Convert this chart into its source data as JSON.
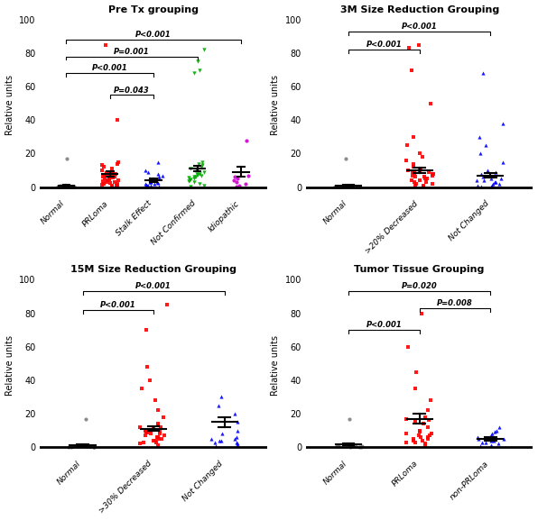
{
  "panels": [
    {
      "title": "Pre Tx grouping",
      "groups_all": [
        "Normal",
        "PRLoma",
        "Stalk Effect",
        "Not Confirmed",
        "Idiopathic"
      ],
      "colors": [
        "#808080",
        "#FF0000",
        "#0000FF",
        "#00AA00",
        "#CC00CC"
      ],
      "markers": [
        "o",
        "s",
        "^",
        "v",
        "o"
      ],
      "means": [
        1.0,
        8.0,
        4.0,
        11.0,
        9.0
      ],
      "sems": [
        0.5,
        1.5,
        1.0,
        1.5,
        3.0
      ],
      "data": [
        [
          0.2,
          0.3,
          0.5,
          0.4,
          0.6,
          0.7,
          0.5,
          0.4,
          0.3,
          0.5,
          0.6,
          0.4,
          0.5,
          0.3,
          0.4,
          0.5,
          0.6,
          17.0,
          0.3,
          0.4
        ],
        [
          1.0,
          2.0,
          3.0,
          4.0,
          5.0,
          6.0,
          7.0,
          8.0,
          9.0,
          10.0,
          11.0,
          12.0,
          13.0,
          14.0,
          15.0,
          8.0,
          7.5,
          6.5,
          5.5,
          4.5,
          3.5,
          2.5,
          1.5,
          0.5,
          85.0,
          9.0,
          8.5,
          7.0,
          6.0,
          5.0,
          4.0,
          3.0,
          2.0,
          1.0,
          0.5,
          40.0
        ],
        [
          0.5,
          1.0,
          2.0,
          3.0,
          4.0,
          5.0,
          6.0,
          4.0,
          3.0,
          2.0,
          1.0,
          0.5,
          0.3,
          7.0,
          8.0,
          9.0,
          10.0,
          5.0,
          3.0,
          2.5,
          15.0,
          1.5,
          0.8
        ],
        [
          0.5,
          1.0,
          2.0,
          3.0,
          4.0,
          5.0,
          6.0,
          7.0,
          8.0,
          9.0,
          10.0,
          11.0,
          12.0,
          13.0,
          14.0,
          15.0,
          8.0,
          7.5,
          6.5,
          5.5,
          4.5,
          3.5,
          70.0,
          68.0,
          75.0,
          82.0
        ],
        [
          0.5,
          1.0,
          2.0,
          3.0,
          4.0,
          5.0,
          6.0,
          7.0,
          28.0
        ]
      ],
      "significance": [
        {
          "from": 0,
          "to": 4,
          "y": 88,
          "text": "P<0.001"
        },
        {
          "from": 0,
          "to": 3,
          "y": 78,
          "text": "P=0.001"
        },
        {
          "from": 0,
          "to": 2,
          "y": 68,
          "text": "P<0.001"
        },
        {
          "from": 1,
          "to": 2,
          "y": 55,
          "text": "P=0.043"
        }
      ]
    },
    {
      "title": "3M Size Reduction Grouping",
      "groups_all": [
        "Normal",
        ">20% Decreased",
        "Not Changed"
      ],
      "colors": [
        "#808080",
        "#FF0000",
        "#0000FF"
      ],
      "markers": [
        "o",
        "s",
        "^"
      ],
      "means": [
        1.0,
        10.0,
        7.0
      ],
      "sems": [
        0.5,
        1.5,
        1.5
      ],
      "data": [
        [
          0.2,
          0.3,
          0.5,
          0.4,
          0.6,
          0.7,
          0.5,
          0.4,
          0.3,
          0.5,
          0.6,
          0.4,
          0.5,
          0.3,
          0.4,
          0.5,
          17.0,
          0.3,
          0.4
        ],
        [
          1.0,
          2.0,
          3.0,
          4.0,
          5.0,
          6.0,
          7.0,
          8.0,
          9.0,
          10.0,
          12.0,
          14.0,
          16.0,
          18.0,
          20.0,
          25.0,
          30.0,
          50.0,
          70.0,
          83.0,
          85.0,
          8.0,
          7.0,
          6.0,
          5.0,
          4.0,
          3.0,
          2.0,
          1.0,
          0.5,
          11.0,
          10.0,
          9.0,
          8.5
        ],
        [
          0.5,
          1.0,
          2.0,
          3.0,
          4.0,
          5.0,
          6.0,
          7.0,
          8.0,
          9.0,
          10.0,
          15.0,
          20.0,
          25.0,
          30.0,
          38.0,
          5.0,
          4.0,
          3.0,
          2.0,
          1.0,
          0.5,
          68.0
        ]
      ],
      "significance": [
        {
          "from": 0,
          "to": 2,
          "y": 93,
          "text": "P<0.001"
        },
        {
          "from": 0,
          "to": 1,
          "y": 82,
          "text": "P<0.001"
        }
      ]
    },
    {
      "title": "15M Size Reduction Grouping",
      "groups_all": [
        "Normal",
        ">30% Decreased",
        "Not Changed"
      ],
      "colors": [
        "#808080",
        "#FF0000",
        "#0000FF"
      ],
      "markers": [
        "o",
        "s",
        "^"
      ],
      "means": [
        1.0,
        11.0,
        15.0
      ],
      "sems": [
        0.5,
        1.5,
        3.0
      ],
      "data": [
        [
          0.2,
          0.3,
          0.5,
          0.4,
          0.6,
          0.7,
          0.5,
          0.4,
          0.3,
          0.5,
          0.6,
          0.4,
          0.5,
          0.3,
          17.0,
          0.3,
          0.4
        ],
        [
          1.0,
          2.0,
          3.0,
          4.0,
          5.0,
          6.0,
          7.0,
          8.0,
          9.0,
          10.0,
          12.0,
          14.0,
          18.0,
          22.0,
          28.0,
          35.0,
          40.0,
          48.0,
          70.0,
          85.0,
          8.0,
          7.0,
          6.0,
          5.0,
          4.0,
          3.0,
          11.0,
          10.0,
          9.0,
          8.5,
          12.0,
          13.0
        ],
        [
          0.5,
          1.0,
          2.0,
          3.0,
          4.0,
          5.0,
          6.0,
          8.0,
          10.0,
          15.0,
          20.0,
          25.0,
          30.0,
          5.0,
          4.0,
          3.0
        ]
      ],
      "significance": [
        {
          "from": 0,
          "to": 2,
          "y": 93,
          "text": "P<0.001"
        },
        {
          "from": 0,
          "to": 1,
          "y": 82,
          "text": "P<0.001"
        }
      ]
    },
    {
      "title": "Tumor Tissue Grouping",
      "groups_all": [
        "Normal",
        "PRLoma",
        "non-PRLoma"
      ],
      "colors": [
        "#808080",
        "#FF0000",
        "#0000FF"
      ],
      "markers": [
        "o",
        "s",
        "^"
      ],
      "means": [
        1.5,
        17.0,
        5.0
      ],
      "sems": [
        0.5,
        3.0,
        1.0
      ],
      "data": [
        [
          0.2,
          0.3,
          0.5,
          0.4,
          0.6,
          0.7,
          0.5,
          0.4,
          17.0,
          0.3,
          0.4
        ],
        [
          1.0,
          2.0,
          3.0,
          4.0,
          5.0,
          6.0,
          7.0,
          8.0,
          9.0,
          10.0,
          12.0,
          14.0,
          18.0,
          22.0,
          28.0,
          35.0,
          45.0,
          60.0,
          80.0,
          8.0,
          7.0,
          6.0,
          5.0,
          4.0,
          3.0,
          17.0,
          16.0,
          15.0
        ],
        [
          0.5,
          1.0,
          2.0,
          3.0,
          4.0,
          5.0,
          6.0,
          7.0,
          8.0,
          9.0,
          10.0,
          5.0,
          4.0,
          3.0,
          12.0
        ]
      ],
      "significance": [
        {
          "from": 0,
          "to": 2,
          "y": 93,
          "text": "P=0.020"
        },
        {
          "from": 1,
          "to": 2,
          "y": 83,
          "text": "P=0.008"
        },
        {
          "from": 0,
          "to": 1,
          "y": 70,
          "text": "P<0.001"
        }
      ]
    }
  ],
  "ylabel": "Relative units",
  "ylim": [
    -2,
    100
  ],
  "yticks": [
    0,
    20,
    40,
    60,
    80,
    100
  ]
}
